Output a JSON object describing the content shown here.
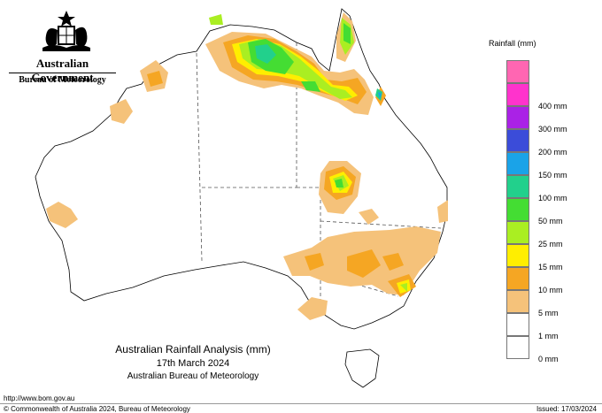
{
  "header": {
    "government": "Australian Government",
    "bureau": "Bureau of Meteorology"
  },
  "legend": {
    "title": "Rainfall (mm)",
    "items": [
      {
        "label": "",
        "color": "#ff66b2"
      },
      {
        "label": "400 mm",
        "color": "#ff33cc"
      },
      {
        "label": "300 mm",
        "color": "#aa22e6"
      },
      {
        "label": "200 mm",
        "color": "#3b4cd9"
      },
      {
        "label": "150 mm",
        "color": "#1aa3e8"
      },
      {
        "label": "100 mm",
        "color": "#22d08c"
      },
      {
        "label": "50 mm",
        "color": "#44dd33"
      },
      {
        "label": "25 mm",
        "color": "#aaee22"
      },
      {
        "label": "15 mm",
        "color": "#ffee00"
      },
      {
        "label": "10 mm",
        "color": "#f5a623"
      },
      {
        "label": "5 mm",
        "color": "#f5c27a"
      },
      {
        "label": "1 mm",
        "color": "#ffffff"
      },
      {
        "label": "0 mm",
        "color": "#ffffff"
      }
    ]
  },
  "caption": {
    "line1": "Australian Rainfall Analysis (mm)",
    "line2": "17th March 2024",
    "line3": "Australian Bureau of Meteorology"
  },
  "footer": {
    "url": "http://www.bom.gov.au",
    "copyright": "© Commonwealth of Australia 2024, Bureau of Meteorology",
    "issued": "Issued: 17/03/2024"
  }
}
